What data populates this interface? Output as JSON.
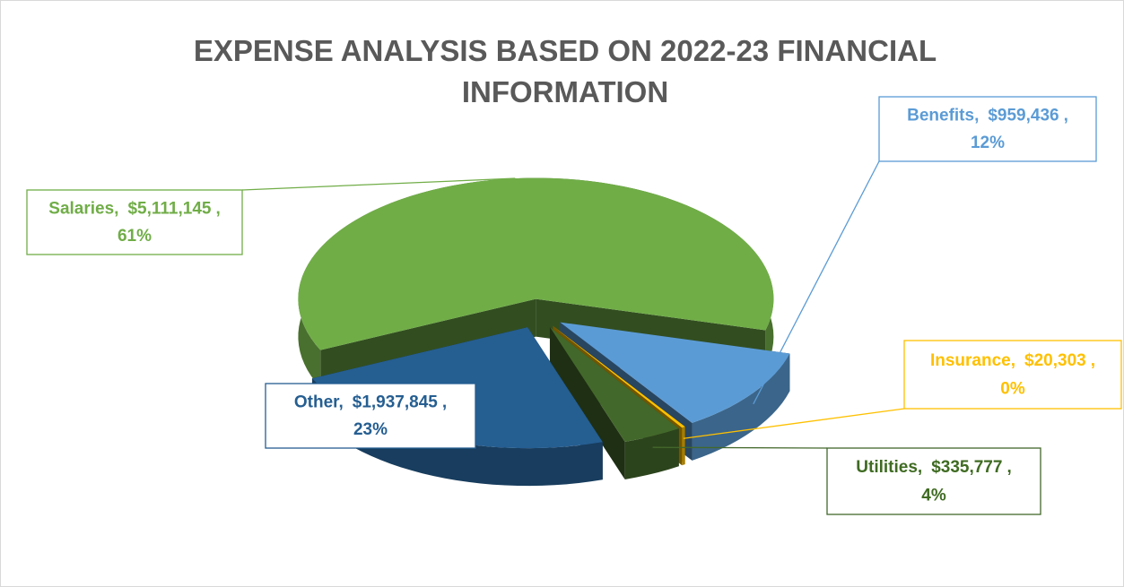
{
  "chart_data": {
    "type": "pie3d",
    "title": "EXPENSE ANALYSIS BASED ON 2022-23 FINANCIAL INFORMATION",
    "categories": [
      "Salaries",
      "Benefits",
      "Insurance",
      "Utilities",
      "Other"
    ],
    "values": [
      5111145,
      959436,
      20303,
      335777,
      1937845
    ],
    "value_labels": [
      "$5,111,145",
      "$959,436",
      "$20,303",
      "$335,777",
      "$1,937,845"
    ],
    "percent_labels": [
      "61%",
      "12%",
      "0%",
      "4%",
      "23%"
    ],
    "label_separator": ",",
    "colors": [
      "#70ad47",
      "#5b9bd5",
      "#ffc000",
      "#43682b",
      "#255e91"
    ]
  }
}
